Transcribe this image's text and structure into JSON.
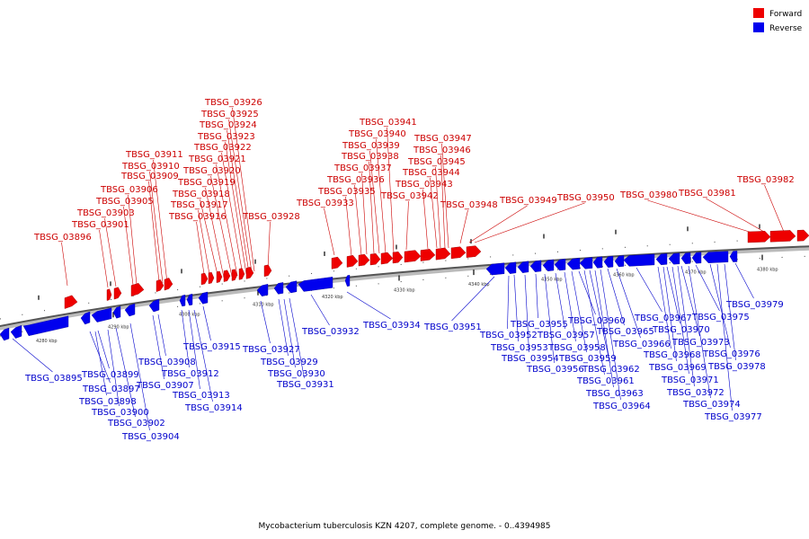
{
  "caption": "Mycobacterium tuberculosis KZN 4207, complete genome. - 0..4394985",
  "legend": [
    {
      "label": "Forward",
      "color": "#ee0000"
    },
    {
      "label": "Reverse",
      "color": "#0000ee"
    }
  ],
  "colors": {
    "forward": "#ee0000",
    "reverse": "#0000ee"
  },
  "kbp_ticks": [
    "4280 kbp",
    "4290 kbp",
    "4300 kbp",
    "4310 kbp",
    "4320 kbp",
    "4330 kbp",
    "4340 kbp",
    "4350 kbp",
    "4360 kbp",
    "4370 kbp",
    "4380 kbp"
  ],
  "forward_genes": [
    "TBSG_03896",
    "TBSG_03901",
    "TBSG_03903",
    "TBSG_03905",
    "TBSG_03906",
    "TBSG_03909",
    "TBSG_03910",
    "TBSG_03911",
    "TBSG_03916",
    "TBSG_03917",
    "TBSG_03918",
    "TBSG_03919",
    "TBSG_03920",
    "TBSG_03921",
    "TBSG_03922",
    "TBSG_03923",
    "TBSG_03924",
    "TBSG_03925",
    "TBSG_03926",
    "TBSG_03928",
    "TBSG_03933",
    "TBSG_03935",
    "TBSG_03936",
    "TBSG_03937",
    "TBSG_03938",
    "TBSG_03939",
    "TBSG_03940",
    "TBSG_03941",
    "TBSG_03942",
    "TBSG_03943",
    "TBSG_03944",
    "TBSG_03945",
    "TBSG_03946",
    "TBSG_03947",
    "TBSG_03948",
    "TBSG_03949",
    "TBSG_03950",
    "TBSG_03980",
    "TBSG_03981",
    "TBSG_03982"
  ],
  "reverse_genes": [
    "TBSG_03895",
    "TBSG_03897",
    "TBSG_03898",
    "TBSG_03899",
    "TBSG_03900",
    "TBSG_03902",
    "TBSG_03904",
    "TBSG_03907",
    "TBSG_03908",
    "TBSG_03912",
    "TBSG_03913",
    "TBSG_03914",
    "TBSG_03915",
    "TBSG_03927",
    "TBSG_03929",
    "TBSG_03930",
    "TBSG_03931",
    "TBSG_03932",
    "TBSG_03934",
    "TBSG_03951",
    "TBSG_03952",
    "TBSG_03953",
    "TBSG_03954",
    "TBSG_03955",
    "TBSG_03956",
    "TBSG_03957",
    "TBSG_03958",
    "TBSG_03959",
    "TBSG_03960",
    "TBSG_03961",
    "TBSG_03962",
    "TBSG_03963",
    "TBSG_03964",
    "TBSG_03965",
    "TBSG_03966",
    "TBSG_03967",
    "TBSG_03968",
    "TBSG_03969",
    "TBSG_03970",
    "TBSG_03971",
    "TBSG_03972",
    "TBSG_03973",
    "TBSG_03974",
    "TBSG_03975",
    "TBSG_03976",
    "TBSG_03977",
    "TBSG_03978",
    "TBSG_03979"
  ]
}
